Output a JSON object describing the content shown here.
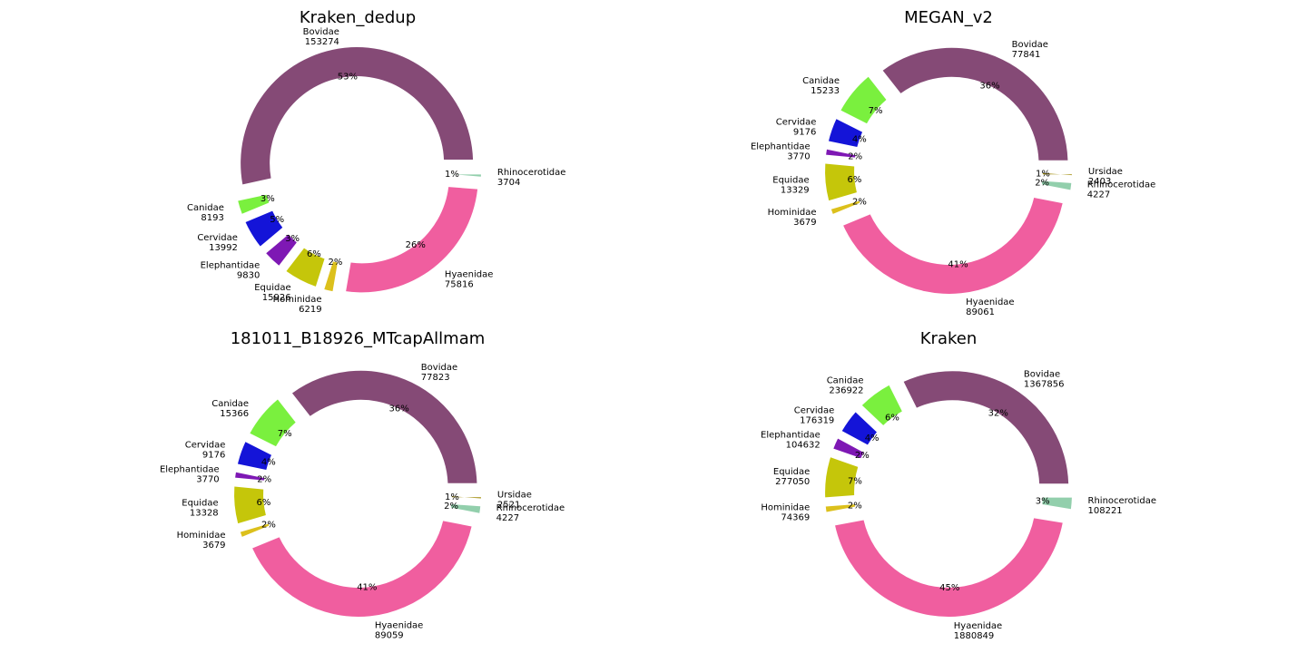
{
  "chart_data": [
    {
      "type": "pie",
      "title": "Kraken_dedup",
      "slices": [
        {
          "name": "Bovidae",
          "value": 153274,
          "pct": "53%",
          "color": "#854a76"
        },
        {
          "name": "Canidae",
          "value": 8193,
          "pct": "3%",
          "color": "#7af03e"
        },
        {
          "name": "Cervidae",
          "value": 13992,
          "pct": "5%",
          "color": "#1414d8"
        },
        {
          "name": "Elephantidae",
          "value": 9830,
          "pct": "3%",
          "color": "#7e18b4"
        },
        {
          "name": "Equidae",
          "value": 15926,
          "pct": "6%",
          "color": "#c5c60a"
        },
        {
          "name": "Hominidae",
          "value": 6219,
          "pct": "2%",
          "color": "#dcc01c"
        },
        {
          "name": "Hyaenidae",
          "value": 75816,
          "pct": "26%",
          "color": "#f05e9f"
        },
        {
          "name": "Rhinocerotidae",
          "value": 3704,
          "pct": "1%",
          "color": "#92cfac"
        }
      ]
    },
    {
      "type": "pie",
      "title": "MEGAN_v2",
      "slices": [
        {
          "name": "Bovidae",
          "value": 77841,
          "pct": "36%",
          "color": "#854a76"
        },
        {
          "name": "Canidae",
          "value": 15233,
          "pct": "7%",
          "color": "#7af03e"
        },
        {
          "name": "Cervidae",
          "value": 9176,
          "pct": "4%",
          "color": "#1414d8"
        },
        {
          "name": "Elephantidae",
          "value": 3770,
          "pct": "2%",
          "color": "#7e18b4"
        },
        {
          "name": "Equidae",
          "value": 13329,
          "pct": "6%",
          "color": "#c5c60a"
        },
        {
          "name": "Hominidae",
          "value": 3679,
          "pct": "2%",
          "color": "#dcc01c"
        },
        {
          "name": "Hyaenidae",
          "value": 89061,
          "pct": "41%",
          "color": "#f05e9f"
        },
        {
          "name": "Rhinocerotidae",
          "value": 4227,
          "pct": "2%",
          "color": "#92cfac"
        },
        {
          "name": "Ursidae",
          "value": 2403,
          "pct": "1%",
          "color": "#a08c08"
        }
      ]
    },
    {
      "type": "pie",
      "title": "181011_B18926_MTcapAllmam",
      "slices": [
        {
          "name": "Bovidae",
          "value": 77823,
          "pct": "36%",
          "color": "#854a76"
        },
        {
          "name": "Canidae",
          "value": 15366,
          "pct": "7%",
          "color": "#7af03e"
        },
        {
          "name": "Cervidae",
          "value": 9176,
          "pct": "4%",
          "color": "#1414d8"
        },
        {
          "name": "Elephantidae",
          "value": 3770,
          "pct": "2%",
          "color": "#7e18b4"
        },
        {
          "name": "Equidae",
          "value": 13328,
          "pct": "6%",
          "color": "#c5c60a"
        },
        {
          "name": "Hominidae",
          "value": 3679,
          "pct": "2%",
          "color": "#dcc01c"
        },
        {
          "name": "Hyaenidae",
          "value": 89059,
          "pct": "41%",
          "color": "#f05e9f"
        },
        {
          "name": "Rhinocerotidae",
          "value": 4227,
          "pct": "2%",
          "color": "#92cfac"
        },
        {
          "name": "Ursidae",
          "value": 2521,
          "pct": "1%",
          "color": "#a08c08"
        }
      ]
    },
    {
      "type": "pie",
      "title": "Kraken",
      "slices": [
        {
          "name": "Bovidae",
          "value": 1367856,
          "pct": "32%",
          "color": "#854a76"
        },
        {
          "name": "Canidae",
          "value": 236922,
          "pct": "6%",
          "color": "#7af03e"
        },
        {
          "name": "Cervidae",
          "value": 176319,
          "pct": "4%",
          "color": "#1414d8"
        },
        {
          "name": "Elephantidae",
          "value": 104632,
          "pct": "2%",
          "color": "#7e18b4"
        },
        {
          "name": "Equidae",
          "value": 277050,
          "pct": "7%",
          "color": "#c5c60a"
        },
        {
          "name": "Hominidae",
          "value": 74369,
          "pct": "2%",
          "color": "#dcc01c"
        },
        {
          "name": "Hyaenidae",
          "value": 1880849,
          "pct": "45%",
          "color": "#f05e9f"
        },
        {
          "name": "Rhinocerotidae",
          "value": 108221,
          "pct": "3%",
          "color": "#92cfac"
        }
      ]
    }
  ]
}
